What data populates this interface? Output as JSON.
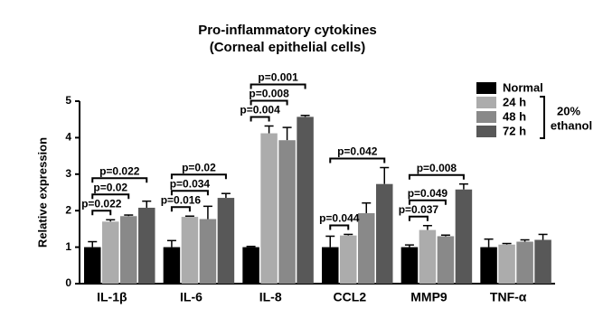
{
  "chart_data": {
    "type": "bar",
    "title": [
      "Pro-inflammatory cytokines",
      "(Corneal epithelial cells)"
    ],
    "y_label": "Relative expression",
    "categories": [
      "IL-1β",
      "IL-6",
      "IL-8",
      "CCL2",
      "MMP9",
      "TNF-α"
    ],
    "series": [
      {
        "name": "Normal",
        "color": "#000000",
        "values": [
          1.0,
          1.0,
          1.0,
          1.0,
          1.0,
          1.0
        ],
        "errors": [
          0.15,
          0.18,
          0.02,
          0.3,
          0.06,
          0.22
        ]
      },
      {
        "name": "24 h",
        "color": "#acacac",
        "values": [
          1.7,
          1.83,
          4.12,
          1.32,
          1.47,
          1.07
        ],
        "errors": [
          0.05,
          0.02,
          0.2,
          0.03,
          0.12,
          0.03
        ]
      },
      {
        "name": "48 h",
        "color": "#898989",
        "values": [
          1.85,
          1.77,
          3.93,
          1.93,
          1.3,
          1.15
        ],
        "errors": [
          0.03,
          0.35,
          0.35,
          0.28,
          0.03,
          0.05
        ]
      },
      {
        "name": "72 h",
        "color": "#585858",
        "values": [
          2.08,
          2.35,
          4.57,
          2.73,
          2.58,
          1.2
        ],
        "errors": [
          0.18,
          0.12,
          0.04,
          0.45,
          0.15,
          0.15
        ]
      }
    ],
    "legend_group_label": [
      "20%",
      "ethanol"
    ],
    "comparisons": [
      {
        "group": 0,
        "to": 1,
        "label": "p=0.022"
      },
      {
        "group": 0,
        "to": 2,
        "label": "p=0.02"
      },
      {
        "group": 0,
        "to": 3,
        "label": "p=0.022"
      },
      {
        "group": 1,
        "to": 1,
        "label": "p=0.016"
      },
      {
        "group": 1,
        "to": 2,
        "label": "p=0.034"
      },
      {
        "group": 1,
        "to": 3,
        "label": "p=0.02"
      },
      {
        "group": 2,
        "to": 1,
        "label": "p=0.004"
      },
      {
        "group": 2,
        "to": 2,
        "label": "p=0.008"
      },
      {
        "group": 2,
        "to": 3,
        "label": "p=0.001"
      },
      {
        "group": 3,
        "to": 1,
        "label": "p=0.044"
      },
      {
        "group": 3,
        "to": 3,
        "label": "p=0.042"
      },
      {
        "group": 4,
        "to": 1,
        "label": "p=0.037"
      },
      {
        "group": 4,
        "to": 2,
        "label": "p=0.049"
      },
      {
        "group": 4,
        "to": 3,
        "label": "p=0.008"
      }
    ],
    "ylim": [
      0,
      5
    ],
    "yticks": [
      0,
      1,
      2,
      3,
      4,
      5
    ]
  }
}
